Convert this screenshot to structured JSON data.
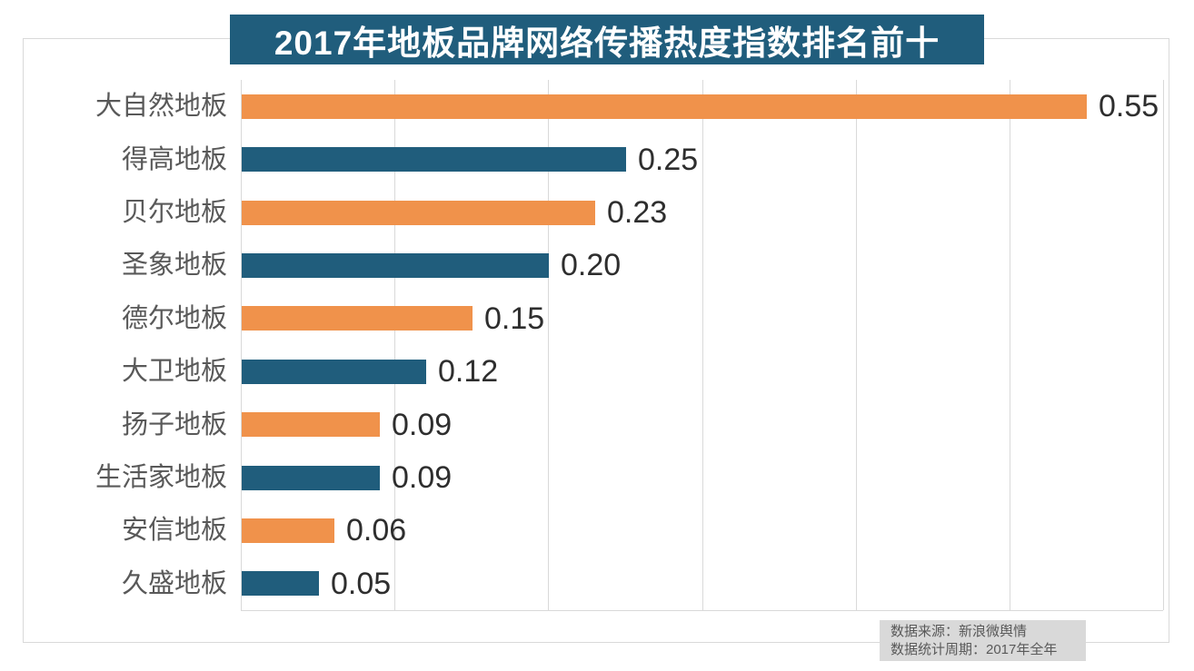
{
  "chart_data": {
    "type": "bar",
    "orientation": "horizontal",
    "title": "2017年地板品牌网络传播热度指数排名前十",
    "categories": [
      "大自然地板",
      "得高地板",
      "贝尔地板",
      "圣象地板",
      "德尔地板",
      "大卫地板",
      "扬子地板",
      "生活家地板",
      "安信地板",
      "久盛地板"
    ],
    "values": [
      0.55,
      0.25,
      0.23,
      0.2,
      0.15,
      0.12,
      0.09,
      0.09,
      0.06,
      0.05
    ],
    "value_labels": [
      "0.55",
      "0.25",
      "0.23",
      "0.20",
      "0.15",
      "0.12",
      "0.09",
      "0.09",
      "0.06",
      "0.05"
    ],
    "xlim": [
      0,
      0.6
    ],
    "grid_step": 0.1,
    "grid": true,
    "legend": false,
    "xlabel": "",
    "ylabel": "",
    "bar_color_pattern": "alternating orange/teal starting with orange"
  },
  "source_note": {
    "line1": "数据来源：新浪微舆情",
    "line2": "数据统计周期：2017年全年"
  },
  "colors": {
    "orange": "#F0924B",
    "teal": "#205D7C",
    "title_bg": "#205D7C",
    "title_text": "#FFFFFF",
    "grid": "#D9D9D9",
    "frame": "#D9D9D9",
    "category_text": "#595959",
    "value_text": "#2E2E2E",
    "source_bg": "#D9D9D9",
    "source_text": "#595959"
  }
}
